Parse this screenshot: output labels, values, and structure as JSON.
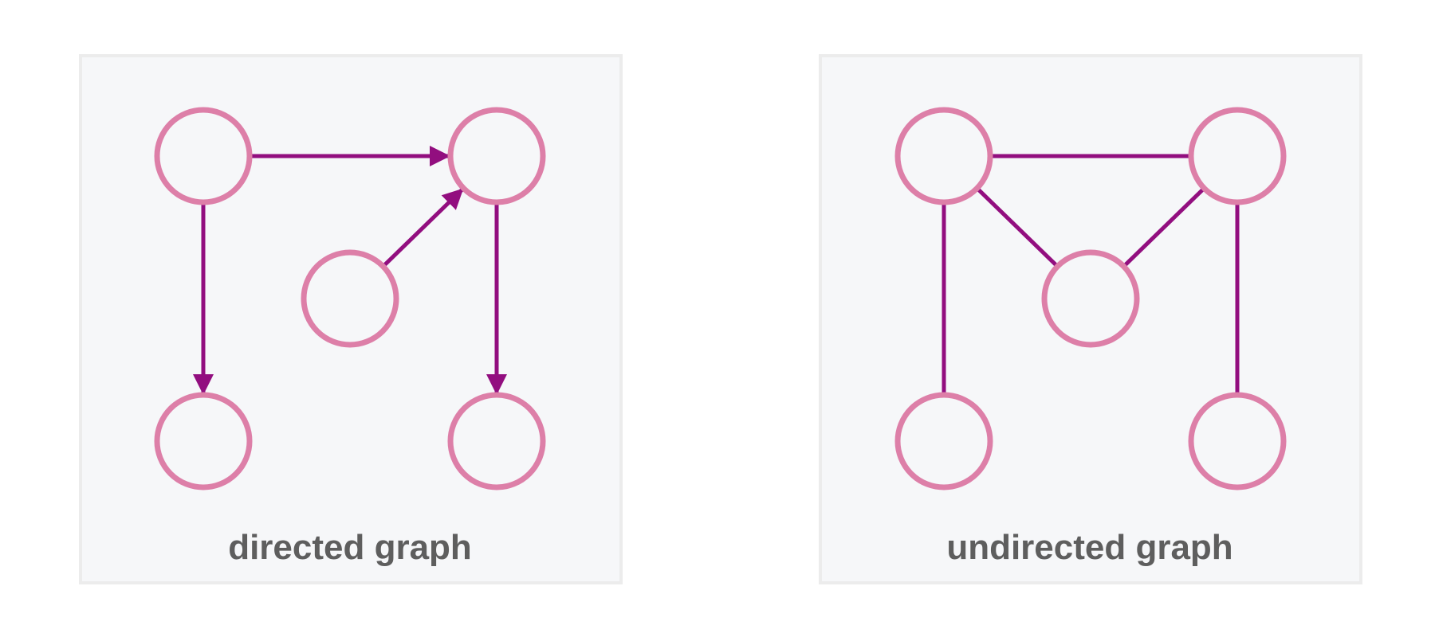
{
  "colors": {
    "panel_fill": "#f6f7f9",
    "panel_border": "#ececec",
    "node_stroke": "#dd7fa8",
    "node_fill": "#f6f7f9",
    "edge": "#920e7f",
    "caption": "#5e5e5e"
  },
  "panels": [
    {
      "id": "directed",
      "caption": "directed graph",
      "directed": true,
      "nodes": [
        "top-left",
        "top-right",
        "middle",
        "bottom-left",
        "bottom-right"
      ],
      "edges": [
        {
          "from": "top-left",
          "to": "top-right"
        },
        {
          "from": "top-left",
          "to": "bottom-left"
        },
        {
          "from": "middle",
          "to": "top-right"
        },
        {
          "from": "top-right",
          "to": "bottom-right"
        }
      ]
    },
    {
      "id": "undirected",
      "caption": "undirected graph",
      "directed": false,
      "nodes": [
        "top-left",
        "top-right",
        "middle",
        "bottom-left",
        "bottom-right"
      ],
      "edges": [
        {
          "from": "top-left",
          "to": "top-right"
        },
        {
          "from": "top-left",
          "to": "middle"
        },
        {
          "from": "middle",
          "to": "top-right"
        },
        {
          "from": "top-left",
          "to": "bottom-left"
        },
        {
          "from": "top-right",
          "to": "bottom-right"
        }
      ]
    }
  ]
}
